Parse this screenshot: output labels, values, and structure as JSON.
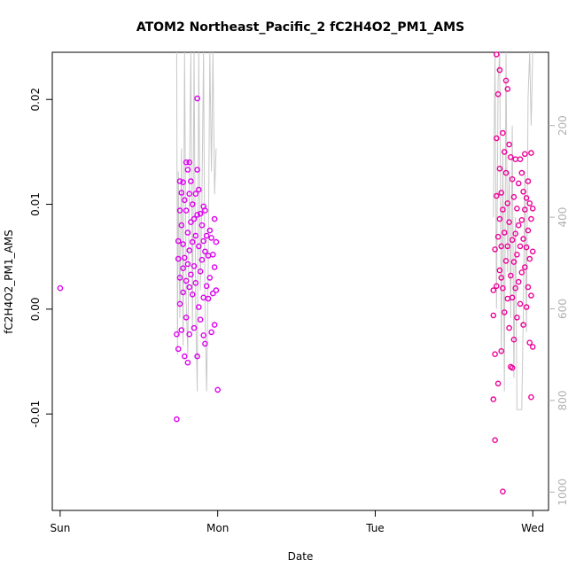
{
  "chart_data": {
    "type": "scatter",
    "title": "ATOM2 Northeast_Pacific_2 fC2H4O2_PM1_AMS",
    "xlabel": "Date",
    "ylabel": "fC2H4O2_PM1_AMS",
    "x_ticks": [
      {
        "x": 0,
        "label": "Sun"
      },
      {
        "x": 1,
        "label": "Mon"
      },
      {
        "x": 2,
        "label": "Tue"
      },
      {
        "x": 3,
        "label": "Wed"
      }
    ],
    "y_ticks": [
      {
        "y": -0.01,
        "label": "-0.01"
      },
      {
        "y": 0.0,
        "label": "0.00"
      },
      {
        "y": 0.01,
        "label": "0.01"
      },
      {
        "y": 0.02,
        "label": "0.02"
      }
    ],
    "y2_ticks": [
      {
        "y": 200,
        "label": "200"
      },
      {
        "y": 400,
        "label": "400"
      },
      {
        "y": 600,
        "label": "600"
      },
      {
        "y": 800,
        "label": "800"
      },
      {
        "y": 1000,
        "label": "1000"
      }
    ],
    "xlim": [
      -0.05,
      3.1
    ],
    "ylim": [
      -0.0192,
      0.0245
    ],
    "y2lim": [
      1040,
      40
    ],
    "y2_reversed": true,
    "grid": false,
    "colors": {
      "group1": "#dd00ee",
      "group2": "#ee0099",
      "altitude_line": "#c8c8c8"
    },
    "series": [
      {
        "group": 1,
        "points": [
          [
            0.0,
            0.002
          ],
          [
            0.74,
            -0.0105
          ],
          [
            0.74,
            -0.0024
          ],
          [
            0.75,
            -0.0038
          ],
          [
            0.75,
            0.0048
          ],
          [
            0.75,
            0.0065
          ],
          [
            0.76,
            0.0122
          ],
          [
            0.76,
            0.0094
          ],
          [
            0.76,
            0.0005
          ],
          [
            0.76,
            0.003
          ],
          [
            0.77,
            0.008
          ],
          [
            0.77,
            0.0111
          ],
          [
            0.77,
            -0.002
          ],
          [
            0.78,
            0.0121
          ],
          [
            0.78,
            0.0062
          ],
          [
            0.78,
            0.0016
          ],
          [
            0.78,
            0.0039
          ],
          [
            0.79,
            -0.0045
          ],
          [
            0.79,
            0.0104
          ],
          [
            0.79,
            0.0049
          ],
          [
            0.8,
            0.014
          ],
          [
            0.8,
            0.0094
          ],
          [
            0.8,
            0.0027
          ],
          [
            0.8,
            -0.0008
          ],
          [
            0.81,
            0.0133
          ],
          [
            0.81,
            0.0073
          ],
          [
            0.81,
            0.0043
          ],
          [
            0.81,
            -0.0051
          ],
          [
            0.82,
            0.014
          ],
          [
            0.82,
            0.011
          ],
          [
            0.82,
            0.0056
          ],
          [
            0.82,
            0.0021
          ],
          [
            0.82,
            -0.0024
          ],
          [
            0.83,
            0.0122
          ],
          [
            0.83,
            0.0083
          ],
          [
            0.83,
            0.0033
          ],
          [
            0.84,
            0.01
          ],
          [
            0.84,
            0.0064
          ],
          [
            0.84,
            0.0014
          ],
          [
            0.85,
            0.0086
          ],
          [
            0.85,
            0.0041
          ],
          [
            0.85,
            -0.0018
          ],
          [
            0.86,
            0.011
          ],
          [
            0.86,
            0.007
          ],
          [
            0.86,
            0.0025
          ],
          [
            0.87,
            0.0201
          ],
          [
            0.87,
            0.0133
          ],
          [
            0.87,
            0.009
          ],
          [
            0.87,
            -0.0045
          ],
          [
            0.88,
            0.0114
          ],
          [
            0.88,
            0.006
          ],
          [
            0.88,
            0.0002
          ],
          [
            0.89,
            0.0091
          ],
          [
            0.89,
            0.0036
          ],
          [
            0.89,
            -0.001
          ],
          [
            0.9,
            0.008
          ],
          [
            0.9,
            0.0047
          ],
          [
            0.91,
            0.0098
          ],
          [
            0.91,
            0.0065
          ],
          [
            0.91,
            0.0011
          ],
          [
            0.91,
            -0.0025
          ],
          [
            0.92,
            0.0094
          ],
          [
            0.92,
            0.0055
          ],
          [
            0.92,
            -0.0033
          ],
          [
            0.93,
            0.007
          ],
          [
            0.93,
            0.0022
          ],
          [
            0.94,
            0.0051
          ],
          [
            0.94,
            0.001
          ],
          [
            0.95,
            0.0075
          ],
          [
            0.95,
            0.003
          ],
          [
            0.96,
            0.0068
          ],
          [
            0.96,
            -0.0022
          ],
          [
            0.97,
            0.0052
          ],
          [
            0.97,
            0.0015
          ],
          [
            0.98,
            0.0086
          ],
          [
            0.98,
            0.004
          ],
          [
            0.98,
            -0.0015
          ],
          [
            0.99,
            0.0064
          ],
          [
            0.99,
            0.0018
          ],
          [
            1.0,
            -0.0077
          ]
        ]
      },
      {
        "group": 2,
        "points": [
          [
            2.75,
            -0.0086
          ],
          [
            2.75,
            0.0018
          ],
          [
            2.75,
            -0.0006
          ],
          [
            2.76,
            -0.0125
          ],
          [
            2.76,
            0.0057
          ],
          [
            2.76,
            -0.0043
          ],
          [
            2.77,
            0.0163
          ],
          [
            2.77,
            0.0243
          ],
          [
            2.77,
            0.0108
          ],
          [
            2.77,
            0.0022
          ],
          [
            2.78,
            0.0205
          ],
          [
            2.78,
            0.0069
          ],
          [
            2.78,
            -0.0071
          ],
          [
            2.79,
            0.0228
          ],
          [
            2.79,
            0.0134
          ],
          [
            2.79,
            0.0086
          ],
          [
            2.79,
            0.0037
          ],
          [
            2.8,
            0.0111
          ],
          [
            2.8,
            0.006
          ],
          [
            2.8,
            -0.004
          ],
          [
            2.81,
            -0.0174
          ],
          [
            2.81,
            0.0168
          ],
          [
            2.81,
            0.0095
          ],
          [
            2.81,
            0.002
          ],
          [
            2.82,
            0.015
          ],
          [
            2.82,
            0.0073
          ],
          [
            2.82,
            -0.0003
          ],
          [
            2.83,
            0.0218
          ],
          [
            2.83,
            0.013
          ],
          [
            2.83,
            0.0046
          ],
          [
            2.84,
            0.021
          ],
          [
            2.84,
            0.0101
          ],
          [
            2.84,
            0.006
          ],
          [
            2.84,
            0.001
          ],
          [
            2.85,
            0.0157
          ],
          [
            2.85,
            0.0083
          ],
          [
            2.85,
            -0.0018
          ],
          [
            2.86,
            0.0145
          ],
          [
            2.86,
            0.0032
          ],
          [
            2.86,
            -0.0055
          ],
          [
            2.87,
            0.0124
          ],
          [
            2.87,
            0.0066
          ],
          [
            2.87,
            0.0011
          ],
          [
            2.88,
            0.0107
          ],
          [
            2.88,
            0.0045
          ],
          [
            2.88,
            -0.0029
          ],
          [
            2.89,
            0.0143
          ],
          [
            2.89,
            0.0072
          ],
          [
            2.89,
            0.002
          ],
          [
            2.9,
            0.0096
          ],
          [
            2.9,
            0.0052
          ],
          [
            2.9,
            -0.0008
          ],
          [
            2.91,
            0.012
          ],
          [
            2.91,
            0.008
          ],
          [
            2.91,
            0.0026
          ],
          [
            2.92,
            0.0143
          ],
          [
            2.92,
            0.006
          ],
          [
            2.92,
            0.0005
          ],
          [
            2.93,
            0.013
          ],
          [
            2.93,
            0.0085
          ],
          [
            2.93,
            0.0035
          ],
          [
            2.94,
            0.0112
          ],
          [
            2.94,
            0.0067
          ],
          [
            2.94,
            -0.0015
          ],
          [
            2.95,
            0.0148
          ],
          [
            2.95,
            0.0095
          ],
          [
            2.95,
            0.004
          ],
          [
            2.96,
            0.0106
          ],
          [
            2.96,
            0.0059
          ],
          [
            2.96,
            0.0002
          ],
          [
            2.97,
            0.0122
          ],
          [
            2.97,
            0.0075
          ],
          [
            2.97,
            0.0021
          ],
          [
            2.98,
            0.0101
          ],
          [
            2.98,
            0.0048
          ],
          [
            2.98,
            -0.0032
          ],
          [
            2.99,
            0.0149
          ],
          [
            2.99,
            0.0086
          ],
          [
            2.99,
            0.0013
          ],
          [
            2.99,
            -0.0084
          ],
          [
            3.0,
            0.0096
          ],
          [
            3.0,
            0.0055
          ],
          [
            3.0,
            -0.0036
          ],
          [
            2.87,
            -0.0056
          ],
          [
            2.8,
            0.003
          ]
        ]
      }
    ],
    "altitude_series": {
      "name_visible": false,
      "points": [
        [
          0.74,
          40
        ],
        [
          0.745,
          700
        ],
        [
          0.75,
          300
        ],
        [
          0.76,
          620
        ],
        [
          0.77,
          250
        ],
        [
          0.78,
          680
        ],
        [
          0.79,
          40
        ],
        [
          0.8,
          580
        ],
        [
          0.81,
          700
        ],
        [
          0.82,
          320
        ],
        [
          0.83,
          40
        ],
        [
          0.84,
          650
        ],
        [
          0.85,
          40
        ],
        [
          0.86,
          600
        ],
        [
          0.87,
          780
        ],
        [
          0.88,
          40
        ],
        [
          0.89,
          560
        ],
        [
          0.9,
          350
        ],
        [
          0.91,
          40
        ],
        [
          0.92,
          620
        ],
        [
          0.93,
          780
        ],
        [
          0.94,
          500
        ],
        [
          0.95,
          40
        ],
        [
          0.96,
          300
        ],
        [
          0.97,
          40
        ],
        [
          0.98,
          350
        ],
        [
          0.99,
          250
        ],
        [
          2.75,
          400
        ],
        [
          2.76,
          40
        ],
        [
          2.77,
          600
        ],
        [
          2.78,
          100
        ],
        [
          2.79,
          40
        ],
        [
          2.8,
          700
        ],
        [
          2.81,
          250
        ],
        [
          2.82,
          780
        ],
        [
          2.83,
          40
        ],
        [
          2.84,
          520
        ],
        [
          2.85,
          300
        ],
        [
          2.86,
          620
        ],
        [
          2.87,
          200
        ],
        [
          2.88,
          750
        ],
        [
          2.89,
          400
        ],
        [
          2.9,
          820
        ],
        [
          2.91,
          820
        ],
        [
          2.92,
          820
        ],
        [
          2.93,
          820
        ],
        [
          2.94,
          600
        ],
        [
          2.95,
          300
        ],
        [
          2.96,
          650
        ],
        [
          2.97,
          140
        ],
        [
          2.98,
          40
        ],
        [
          2.99,
          200
        ],
        [
          3.0,
          40
        ]
      ]
    }
  }
}
